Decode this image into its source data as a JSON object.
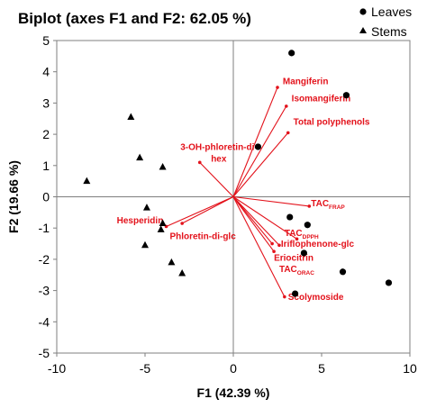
{
  "chart_data": {
    "type": "scatter",
    "title": "Biplot (axes F1 and F2: 62.05 %)",
    "xlabel": "F1 (42.39 %)",
    "ylabel": "F2 (19.66 %)",
    "xlim": [
      -10,
      10
    ],
    "ylim": [
      -5,
      5
    ],
    "xticks": [
      "-10",
      "-5",
      "0",
      "5",
      "10"
    ],
    "yticks": [
      "5",
      "4",
      "3",
      "2",
      "1",
      "0",
      "-1",
      "-2",
      "-3",
      "-4",
      "-5"
    ],
    "legend_position": "top-right",
    "series": [
      {
        "name": "Leaves",
        "marker": "circle",
        "color": "#000000",
        "points": [
          [
            3.3,
            4.6
          ],
          [
            6.4,
            3.25
          ],
          [
            1.4,
            1.6
          ],
          [
            3.2,
            -0.65
          ],
          [
            4.2,
            -0.9
          ],
          [
            4.0,
            -1.8
          ],
          [
            6.2,
            -2.4
          ],
          [
            8.8,
            -2.75
          ],
          [
            3.5,
            -3.1
          ]
        ]
      },
      {
        "name": "Stems",
        "marker": "triangle",
        "color": "#000000",
        "points": [
          [
            -8.3,
            0.5
          ],
          [
            -5.8,
            2.55
          ],
          [
            -5.3,
            1.25
          ],
          [
            -4.0,
            0.95
          ],
          [
            -4.9,
            -0.35
          ],
          [
            -4.0,
            -0.85
          ],
          [
            -4.1,
            -1.05
          ],
          [
            -5.0,
            -1.55
          ],
          [
            -3.5,
            -2.1
          ],
          [
            -2.9,
            -2.45
          ]
        ]
      }
    ],
    "variables": {
      "color": "#e3121b",
      "vectors": [
        {
          "label": "Mangiferin",
          "x": 2.5,
          "y": 3.5,
          "label_x": 2.8,
          "label_y": 3.6
        },
        {
          "label": "Isomangiferin",
          "x": 3.0,
          "y": 2.9,
          "label_x": 3.3,
          "label_y": 3.05
        },
        {
          "label": "Total polyphenols",
          "x": 3.1,
          "y": 2.05,
          "label_x": 3.4,
          "label_y": 2.3
        },
        {
          "label": "3-OH-phloretin-di-",
          "label2": "hex",
          "x": -1.9,
          "y": 1.1,
          "label_x": -3.0,
          "label_y": 1.5
        },
        {
          "label": "Hesperidin",
          "x": -3.8,
          "y": -0.95,
          "label_x": -6.6,
          "label_y": -0.85
        },
        {
          "label": "Phloretin-di-glc",
          "x": -2.9,
          "y": -0.85,
          "label_x": -3.6,
          "label_y": -1.35
        },
        {
          "label": "TAC",
          "sub": "FRAP",
          "x": 4.3,
          "y": -0.3,
          "label_x": 4.4,
          "label_y": -0.3
        },
        {
          "label": "TAC",
          "sub": "DPPH",
          "x": 3.6,
          "y": -1.35,
          "label_x": 2.9,
          "label_y": -1.25
        },
        {
          "label": "Iriflophenone-glc",
          "x": 2.6,
          "y": -1.55,
          "label_x": 2.7,
          "label_y": -1.6
        },
        {
          "label": "Eriocitrin",
          "x": 2.2,
          "y": -1.5,
          "label_x": 2.3,
          "label_y": -2.05
        },
        {
          "label": "TAC",
          "sub": "ORAC",
          "x": 2.3,
          "y": -1.75,
          "label_x": 2.6,
          "label_y": -2.4
        },
        {
          "label": "Scolymoside",
          "x": 2.9,
          "y": -3.2,
          "label_x": 3.1,
          "label_y": -3.3
        }
      ]
    }
  }
}
